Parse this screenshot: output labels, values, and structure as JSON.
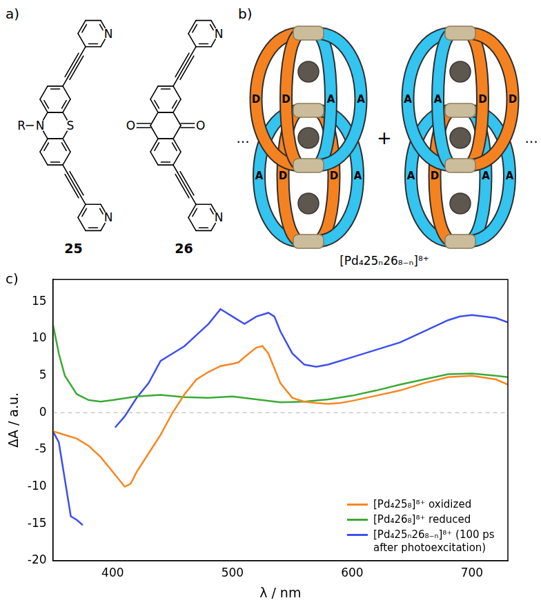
{
  "panel_a": {
    "label": "a)",
    "molecules": [
      {
        "number": "25",
        "substituent": "R",
        "ring_atoms": [
          "N",
          "S"
        ],
        "pyridine_atom": "N"
      },
      {
        "number": "26",
        "carbonyl_atom": "O",
        "pyridine_atom": "N"
      }
    ]
  },
  "panel_b": {
    "label": "b)",
    "ellipsis": "...",
    "plus": "+",
    "formula": "[Pd₄25ₙ26₈₋ₙ]⁸⁺",
    "cages": [
      {
        "ligands": [
          "D",
          "D",
          "A",
          "A",
          "A",
          "D",
          "D",
          "A"
        ]
      },
      {
        "ligands": [
          "A",
          "A",
          "D",
          "D",
          "A",
          "D",
          "A",
          "A"
        ]
      }
    ]
  },
  "panel_c": {
    "label": "c)"
  },
  "chart_data": {
    "type": "line",
    "x_label": "λ / nm",
    "y_label": "ΔA / a.u.",
    "xlim": [
      350,
      730
    ],
    "xticks": [
      400,
      500,
      600,
      700
    ],
    "ylim": [
      -20,
      18
    ],
    "yticks": [
      -20,
      -15,
      -10,
      -5,
      0,
      5,
      10,
      15
    ],
    "grid": false,
    "legend": "lower right",
    "series": [
      {
        "name": "[Pd₄25₈]⁸⁺ oxidized",
        "color": "#f7861f",
        "x": [
          350,
          360,
          370,
          380,
          390,
          400,
          410,
          415,
          420,
          430,
          440,
          450,
          460,
          470,
          480,
          490,
          500,
          505,
          510,
          520,
          525,
          530,
          540,
          550,
          560,
          570,
          580,
          590,
          600,
          620,
          640,
          660,
          680,
          700,
          720,
          730
        ],
        "values": [
          -2.5,
          -3,
          -3.5,
          -4.5,
          -6,
          -8,
          -10,
          -9.6,
          -8,
          -5.5,
          -3,
          0,
          2.5,
          4.5,
          5.5,
          6.3,
          6.6,
          6.8,
          7.5,
          8.8,
          9,
          8,
          4,
          2,
          1.5,
          1.3,
          1.2,
          1.3,
          1.6,
          2.3,
          3,
          4,
          4.8,
          5,
          4.5,
          3.8
        ]
      },
      {
        "name": "[Pd₄26₈]⁸⁺ reduced",
        "color": "#3aaa35",
        "x": [
          350,
          355,
          360,
          370,
          380,
          390,
          400,
          420,
          440,
          460,
          480,
          500,
          520,
          540,
          560,
          580,
          600,
          620,
          640,
          660,
          680,
          700,
          720,
          730
        ],
        "values": [
          12,
          8,
          5,
          2.5,
          1.7,
          1.5,
          1.7,
          2.2,
          2.4,
          2.1,
          2,
          2.2,
          1.8,
          1.4,
          1.5,
          1.8,
          2.3,
          3,
          3.8,
          4.5,
          5.2,
          5.3,
          5,
          4.8
        ]
      },
      {
        "name": "[Pd₄25ₙ26₈₋ₙ]⁸⁺ (100 ps after photoexcitation)",
        "color": "#3c4ff0",
        "x": [
          350,
          355,
          360,
          365,
          370,
          375,
          390,
          402,
          410,
          420,
          430,
          440,
          450,
          460,
          470,
          480,
          490,
          495,
          500,
          510,
          520,
          530,
          535,
          540,
          550,
          560,
          570,
          580,
          600,
          620,
          640,
          660,
          680,
          690,
          700,
          710,
          720,
          730
        ],
        "values": [
          -2.5,
          -4,
          -9,
          -14,
          -14.5,
          -15.2,
          null,
          -2,
          -0.5,
          2,
          4,
          7,
          8,
          9,
          10.5,
          12,
          14,
          13.5,
          13,
          12,
          13,
          13.5,
          13,
          11,
          8,
          6.5,
          6.2,
          6.5,
          7.5,
          8.5,
          9.5,
          11,
          12.5,
          13,
          13.2,
          13,
          12.8,
          12.2
        ]
      }
    ]
  }
}
